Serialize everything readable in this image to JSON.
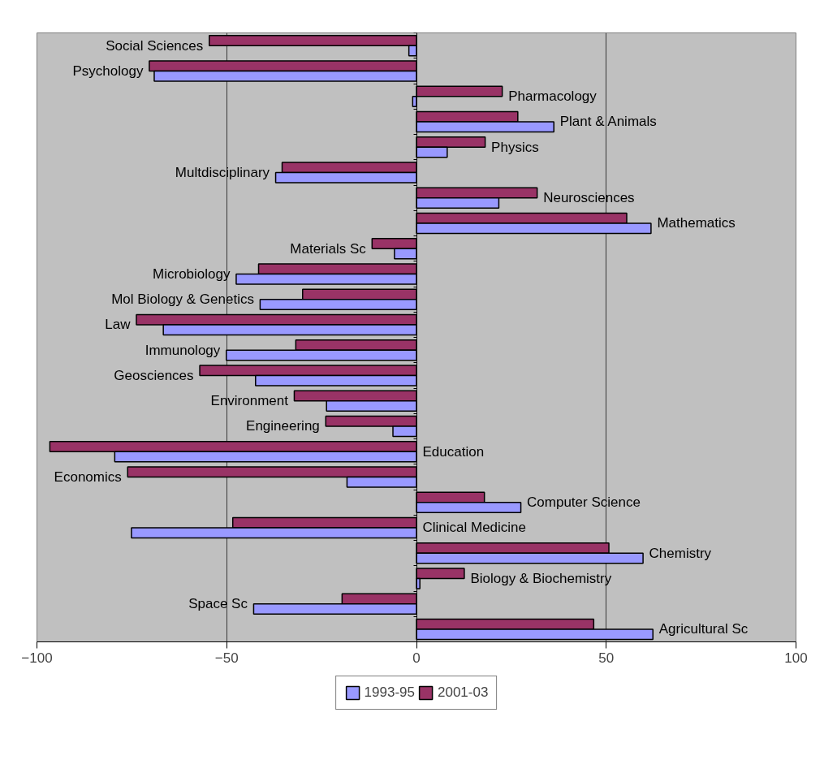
{
  "chart_data": {
    "type": "bar",
    "orientation": "horizontal",
    "categories": [
      "Social Sciences",
      "Psychology",
      "Pharmacology",
      "Plant & Animals",
      "Physics",
      "Multdisciplinary",
      "Neurosciences",
      "Mathematics",
      "Materials Sc",
      "Microbiology",
      "Mol Biology & Genetics",
      "Law",
      "Immunology",
      "Geosciences",
      "Environment",
      "Engineering",
      "Education",
      "Economics",
      "Computer Science",
      "Clinical Medicine",
      "Chemistry",
      "Biology & Biochemistry",
      "Space Sc",
      "Agricultural Sc"
    ],
    "series": [
      {
        "name": "2001-03",
        "color": "#993366",
        "values": [
          -54.6,
          -70.4,
          22.6,
          26.7,
          18.1,
          -35.4,
          31.8,
          55.4,
          -11.7,
          -41.6,
          -30,
          -73.8,
          -31.8,
          -57.1,
          -32.2,
          -23.9,
          -96.6,
          -76.1,
          17.9,
          -48.4,
          50.7,
          12.6,
          -19.6,
          46.7
        ]
      },
      {
        "name": "1993-95",
        "color": "#9999ff",
        "values": [
          -2,
          -69.1,
          -1,
          36.2,
          8.1,
          -37.1,
          21.7,
          61.8,
          -5.8,
          -47.5,
          -41.2,
          -66.7,
          -50.1,
          -42.4,
          -23.7,
          -6.2,
          -79.5,
          -18.3,
          27.5,
          -75.1,
          59.7,
          0.9,
          -42.9,
          62.3
        ]
      }
    ],
    "xlim": [
      -100,
      100
    ],
    "xticks": [
      -100,
      -50,
      0,
      50,
      100
    ],
    "grid": "x",
    "legend": "bottom",
    "tick_labels": "x"
  }
}
